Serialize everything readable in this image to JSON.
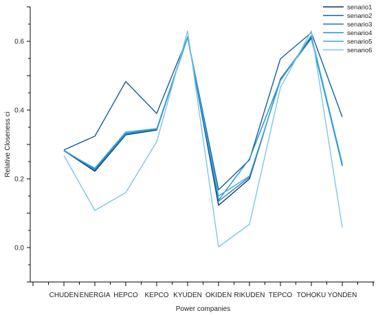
{
  "chart_data": {
    "type": "line",
    "title": "",
    "xlabel": "Power companies",
    "ylabel": "Relative Closeness ci",
    "ylim": [
      -0.1,
      0.7
    ],
    "yticks": [
      "0.0",
      "0.2",
      "0.4",
      "0.6"
    ],
    "grid": false,
    "legend": "top-right",
    "categories": [
      "CHUDEN",
      "ENERGIA",
      "HEPCO",
      "KEPCO",
      "KYUDEN",
      "OKIDEN",
      "RIKUDEN",
      "TEPCO",
      "TOHOKU",
      "YONDEN"
    ],
    "series": [
      {
        "name": "senario1",
        "color": "#0b2f6b",
        "values": [
          0.282,
          0.222,
          0.328,
          0.342,
          0.612,
          0.123,
          0.2,
          0.49,
          0.612,
          0.238
        ]
      },
      {
        "name": "senario2",
        "color": "#155c9e",
        "values": [
          0.284,
          0.324,
          0.483,
          0.39,
          0.612,
          0.168,
          0.255,
          0.549,
          0.625,
          0.38
        ]
      },
      {
        "name": "senario3",
        "color": "#1a78bc",
        "values": [
          0.283,
          0.228,
          0.332,
          0.344,
          0.613,
          0.135,
          0.205,
          0.488,
          0.615,
          0.242
        ]
      },
      {
        "name": "senario4",
        "color": "#1f8fcc",
        "values": [
          0.283,
          0.226,
          0.33,
          0.344,
          0.612,
          0.138,
          0.258,
          0.487,
          0.608,
          0.24
        ]
      },
      {
        "name": "senario5",
        "color": "#3aa9dc",
        "values": [
          0.281,
          0.231,
          0.336,
          0.346,
          0.614,
          0.15,
          0.208,
          0.485,
          0.617,
          0.245
        ]
      },
      {
        "name": "senario6",
        "color": "#7cc6e8",
        "values": [
          0.268,
          0.108,
          0.16,
          0.308,
          0.63,
          0.002,
          0.068,
          0.465,
          0.63,
          0.058
        ]
      }
    ]
  }
}
